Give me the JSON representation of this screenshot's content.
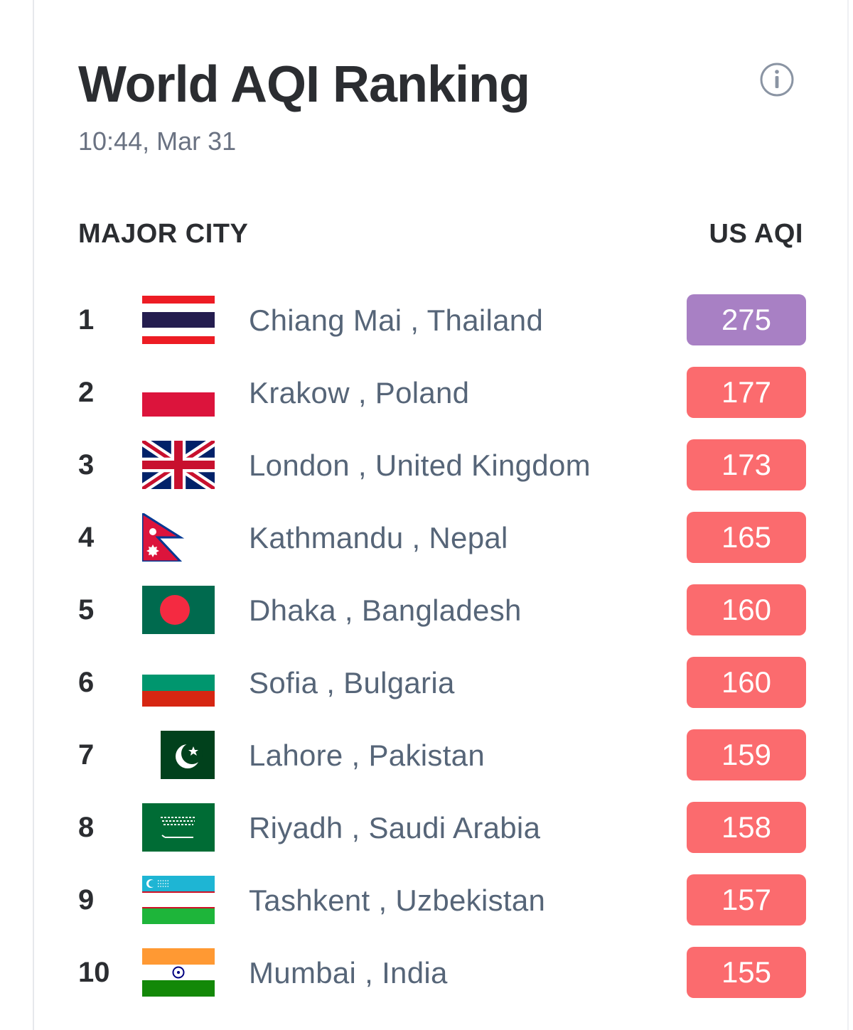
{
  "header": {
    "title": "World AQI Ranking",
    "timestamp": "10:44, Mar 31",
    "info_icon": "info-icon"
  },
  "table": {
    "col_city": "MAJOR CITY",
    "col_aqi": "US AQI"
  },
  "colors": {
    "very_unhealthy": "#a880c4",
    "unhealthy": "#fb6b6e"
  },
  "rows": [
    {
      "rank": "1",
      "city": "Chiang Mai , Thailand",
      "aqi": "275",
      "flag": "thailand-flag-icon",
      "level": "very_unhealthy"
    },
    {
      "rank": "2",
      "city": "Krakow , Poland",
      "aqi": "177",
      "flag": "poland-flag-icon",
      "level": "unhealthy"
    },
    {
      "rank": "3",
      "city": "London , United Kingdom",
      "aqi": "173",
      "flag": "uk-flag-icon",
      "level": "unhealthy"
    },
    {
      "rank": "4",
      "city": "Kathmandu , Nepal",
      "aqi": "165",
      "flag": "nepal-flag-icon",
      "level": "unhealthy"
    },
    {
      "rank": "5",
      "city": "Dhaka , Bangladesh",
      "aqi": "160",
      "flag": "bangladesh-flag-icon",
      "level": "unhealthy"
    },
    {
      "rank": "6",
      "city": "Sofia , Bulgaria",
      "aqi": "160",
      "flag": "bulgaria-flag-icon",
      "level": "unhealthy"
    },
    {
      "rank": "7",
      "city": "Lahore , Pakistan",
      "aqi": "159",
      "flag": "pakistan-flag-icon",
      "level": "unhealthy"
    },
    {
      "rank": "8",
      "city": "Riyadh , Saudi Arabia",
      "aqi": "158",
      "flag": "saudi-arabia-flag-icon",
      "level": "unhealthy"
    },
    {
      "rank": "9",
      "city": "Tashkent , Uzbekistan",
      "aqi": "157",
      "flag": "uzbekistan-flag-icon",
      "level": "unhealthy"
    },
    {
      "rank": "10",
      "city": "Mumbai , India",
      "aqi": "155",
      "flag": "india-flag-icon",
      "level": "unhealthy"
    }
  ]
}
